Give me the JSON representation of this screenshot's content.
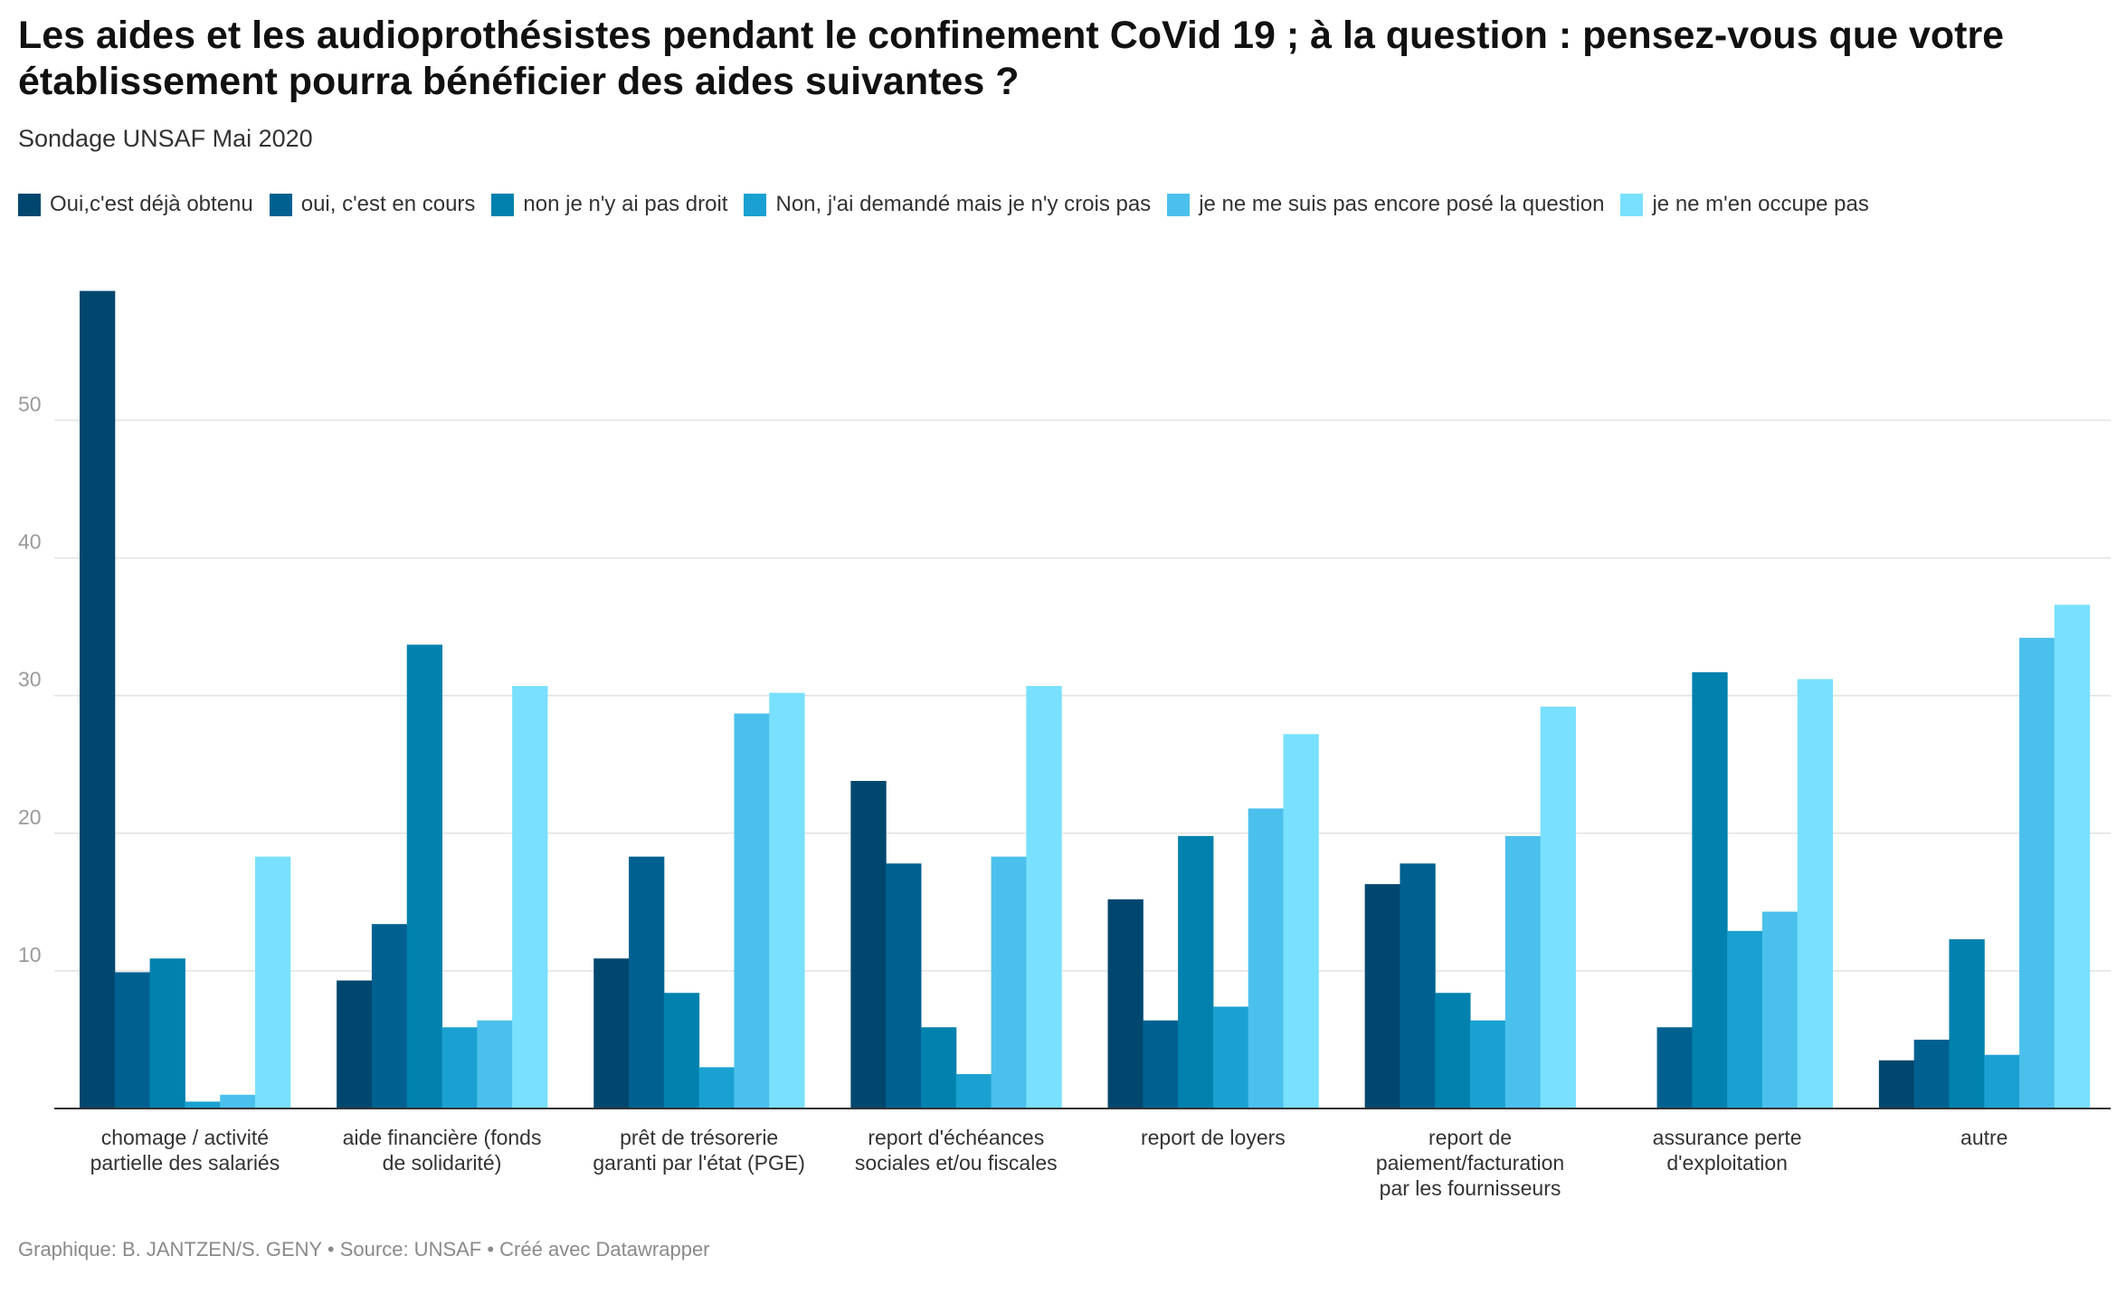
{
  "header": {
    "title": "Les aides et les audioprothésistes pendant le confinement CoVid 19 ; à la question : pensez-vous que votre établissement pourra bénéficier des aides suivantes ?",
    "subtitle": "Sondage UNSAF Mai 2020"
  },
  "footer": {
    "credit": "Graphique: B. JANTZEN/S. GENY • Source: UNSAF • Créé avec Datawrapper"
  },
  "chart_data": {
    "type": "bar",
    "title": "Les aides et les audioprothésistes pendant le confinement CoVid 19 ; à la question : pensez-vous que votre établissement pourra bénéficier des aides suivantes ?",
    "subtitle": "Sondage UNSAF Mai 2020",
    "xlabel": "",
    "ylabel": "",
    "ylim": [
      0,
      59.5
    ],
    "yticks": [
      10,
      20,
      30,
      40,
      50
    ],
    "grid": true,
    "legend_position": "top",
    "categories": [
      [
        "chomage / activité",
        "partielle des salariés"
      ],
      [
        "aide financière (fonds",
        "de solidarité)"
      ],
      [
        "prêt de trésorerie",
        "garanti par l'état (PGE)"
      ],
      [
        "report d'échéances",
        "sociales et/ou fiscales"
      ],
      [
        "report de loyers"
      ],
      [
        "report de",
        "paiement/facturation",
        "par les fournisseurs"
      ],
      [
        "assurance perte",
        "d'exploitation"
      ],
      [
        "autre"
      ]
    ],
    "series": [
      {
        "name": "Oui,c'est déjà obtenu",
        "color": "#00476f",
        "values": [
          59.4,
          9.3,
          10.9,
          23.8,
          15.2,
          16.3,
          0,
          3.5
        ]
      },
      {
        "name": "oui, c'est en cours",
        "color": "#006191",
        "values": [
          9.9,
          13.4,
          18.3,
          17.8,
          6.4,
          17.8,
          5.9,
          5.0
        ]
      },
      {
        "name": "non je n'y ai pas droit",
        "color": "#0081ae",
        "values": [
          10.9,
          33.7,
          8.4,
          5.9,
          19.8,
          8.4,
          31.7,
          12.3
        ]
      },
      {
        "name": "Non, j'ai demandé mais je n'y crois pas",
        "color": "#1ba1d1",
        "values": [
          0.5,
          5.9,
          3.0,
          2.5,
          7.4,
          6.4,
          12.9,
          3.9
        ]
      },
      {
        "name": "je ne me suis pas encore posé la question",
        "color": "#4cc0ec",
        "values": [
          1.0,
          6.4,
          28.7,
          18.3,
          21.8,
          19.8,
          14.3,
          34.2
        ]
      },
      {
        "name": "je ne m'en occupe pas",
        "color": "#79e0ff",
        "values": [
          18.3,
          30.7,
          30.2,
          30.7,
          27.2,
          29.2,
          31.2,
          36.6
        ]
      }
    ]
  }
}
